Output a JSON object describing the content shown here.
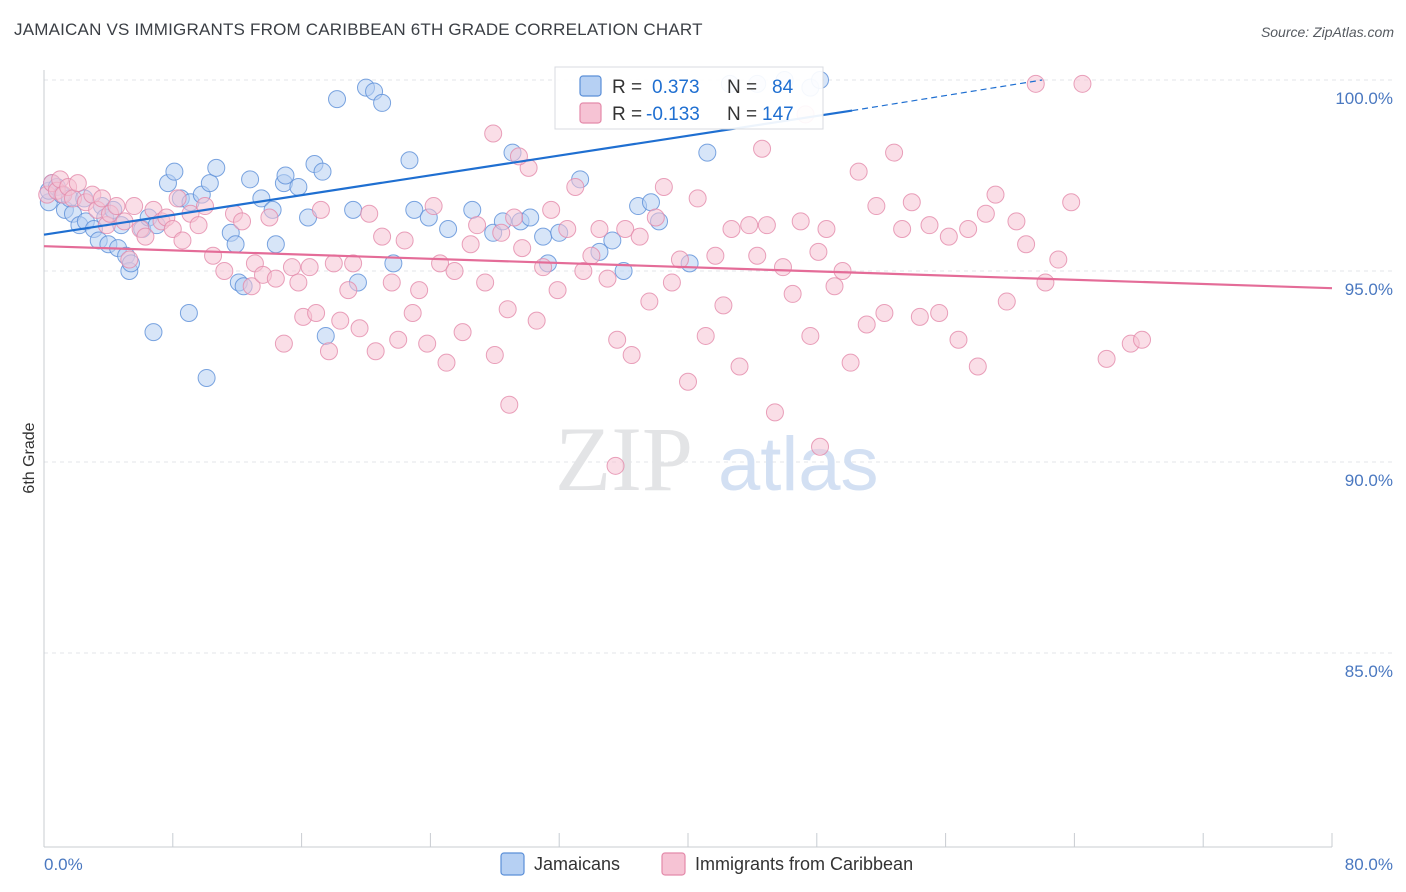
{
  "title": "JAMAICAN VS IMMIGRANTS FROM CARIBBEAN 6TH GRADE CORRELATION CHART",
  "source": "Source: ZipAtlas.com",
  "watermark": {
    "zip": "ZIP",
    "atlas": "atlas"
  },
  "chart_data": {
    "type": "scatter",
    "title": "JAMAICAN VS IMMIGRANTS FROM CARIBBEAN 6TH GRADE CORRELATION CHART",
    "ylabel": "6th Grade",
    "xlabel": "",
    "xlim": [
      0,
      80
    ],
    "ylim": [
      80.5,
      100.7
    ],
    "x_tick_labels": [
      "0.0%",
      "80.0%"
    ],
    "y_ticks": [
      85,
      90,
      95,
      100
    ],
    "y_tick_labels": [
      "85.0%",
      "90.0%",
      "95.0%",
      "100.0%"
    ],
    "grid": true,
    "legend_position": "bottom",
    "stats": [
      {
        "r_label": "R =",
        "r": "0.373",
        "n_label": "N =",
        "n": "84",
        "color": "#1f6fd1",
        "fill": "#b6d0f3"
      },
      {
        "r_label": "R =",
        "r": "-0.133",
        "n_label": "N =",
        "n": "147",
        "color": "#e46c98",
        "fill": "#f6c3d4"
      }
    ],
    "series": [
      {
        "name": "Jamaicans",
        "color": "#5b8fd8",
        "fill": "#b6d0f3",
        "line_color": "#1f6fd1",
        "trend": {
          "x0": 0,
          "y0": 95.95,
          "x1": 50.2,
          "y1": 99.2,
          "dash_to_x": 62,
          "dash_to_y": 100.0
        },
        "points": [
          [
            0.3,
            96.8
          ],
          [
            0.3,
            97.1
          ],
          [
            0.5,
            97.3
          ],
          [
            0.8,
            97.2
          ],
          [
            1.1,
            97.0
          ],
          [
            1.3,
            96.6
          ],
          [
            1.6,
            96.9
          ],
          [
            1.8,
            96.5
          ],
          [
            2.2,
            96.2
          ],
          [
            2.5,
            96.9
          ],
          [
            2.6,
            96.3
          ],
          [
            3.1,
            96.1
          ],
          [
            3.4,
            95.8
          ],
          [
            3.6,
            96.7
          ],
          [
            3.8,
            96.4
          ],
          [
            4.0,
            95.7
          ],
          [
            4.3,
            96.6
          ],
          [
            4.6,
            95.6
          ],
          [
            4.8,
            96.2
          ],
          [
            5.1,
            95.4
          ],
          [
            5.3,
            95.0
          ],
          [
            6.1,
            96.1
          ],
          [
            6.5,
            96.4
          ],
          [
            7.0,
            96.2
          ],
          [
            7.7,
            97.3
          ],
          [
            8.1,
            97.6
          ],
          [
            8.5,
            96.9
          ],
          [
            9.1,
            96.8
          ],
          [
            9.8,
            97.0
          ],
          [
            10.3,
            97.3
          ],
          [
            10.7,
            97.7
          ],
          [
            11.6,
            96.0
          ],
          [
            11.9,
            95.7
          ],
          [
            12.1,
            94.7
          ],
          [
            12.4,
            94.6
          ],
          [
            12.8,
            97.4
          ],
          [
            13.5,
            96.9
          ],
          [
            14.2,
            96.6
          ],
          [
            14.4,
            95.7
          ],
          [
            14.9,
            97.3
          ],
          [
            15.0,
            97.5
          ],
          [
            15.8,
            97.2
          ],
          [
            16.4,
            96.4
          ],
          [
            16.8,
            97.8
          ],
          [
            17.3,
            97.6
          ],
          [
            17.5,
            93.3
          ],
          [
            18.2,
            99.5
          ],
          [
            19.2,
            96.6
          ],
          [
            19.5,
            94.7
          ],
          [
            20.0,
            99.8
          ],
          [
            20.5,
            99.7
          ],
          [
            21.0,
            99.4
          ],
          [
            21.7,
            95.2
          ],
          [
            22.7,
            97.9
          ],
          [
            23.0,
            96.6
          ],
          [
            23.9,
            96.4
          ],
          [
            25.1,
            96.1
          ],
          [
            26.6,
            96.6
          ],
          [
            27.9,
            96.0
          ],
          [
            28.5,
            96.3
          ],
          [
            29.1,
            98.1
          ],
          [
            29.6,
            96.3
          ],
          [
            30.2,
            96.4
          ],
          [
            31.0,
            95.9
          ],
          [
            31.3,
            95.2
          ],
          [
            32.0,
            96.0
          ],
          [
            33.3,
            97.4
          ],
          [
            34.5,
            95.5
          ],
          [
            35.3,
            95.8
          ],
          [
            36.0,
            95.0
          ],
          [
            36.9,
            96.7
          ],
          [
            37.7,
            96.8
          ],
          [
            38.2,
            96.3
          ],
          [
            40.1,
            95.2
          ],
          [
            41.2,
            98.1
          ],
          [
            42.6,
            99.9
          ],
          [
            44.3,
            99.9
          ],
          [
            46.0,
            100.0
          ],
          [
            47.6,
            99.8
          ],
          [
            48.2,
            100.0
          ],
          [
            5.4,
            95.2
          ],
          [
            6.8,
            93.4
          ],
          [
            9.0,
            93.9
          ],
          [
            10.1,
            92.2
          ]
        ]
      },
      {
        "name": "Immigrants from Caribbean",
        "color": "#e48aaa",
        "fill": "#f6c3d4",
        "line_color": "#e46c98",
        "trend": {
          "x0": 0,
          "y0": 95.65,
          "x1": 80,
          "y1": 94.55
        },
        "points": [
          [
            0.2,
            97.0
          ],
          [
            0.5,
            97.3
          ],
          [
            0.8,
            97.1
          ],
          [
            1.0,
            97.4
          ],
          [
            1.2,
            97.0
          ],
          [
            1.5,
            97.2
          ],
          [
            1.8,
            96.9
          ],
          [
            2.1,
            97.3
          ],
          [
            2.6,
            96.8
          ],
          [
            3.0,
            97.0
          ],
          [
            3.3,
            96.6
          ],
          [
            3.6,
            96.9
          ],
          [
            3.9,
            96.2
          ],
          [
            4.1,
            96.5
          ],
          [
            4.5,
            96.7
          ],
          [
            5.0,
            96.3
          ],
          [
            5.3,
            95.3
          ],
          [
            5.6,
            96.7
          ],
          [
            6.0,
            96.1
          ],
          [
            6.3,
            95.9
          ],
          [
            6.8,
            96.6
          ],
          [
            7.3,
            96.3
          ],
          [
            7.6,
            96.4
          ],
          [
            8.0,
            96.1
          ],
          [
            8.3,
            96.9
          ],
          [
            8.6,
            95.8
          ],
          [
            9.1,
            96.5
          ],
          [
            9.6,
            96.2
          ],
          [
            10.0,
            96.7
          ],
          [
            10.5,
            95.4
          ],
          [
            11.2,
            95.0
          ],
          [
            11.8,
            96.5
          ],
          [
            12.3,
            96.3
          ],
          [
            12.9,
            94.6
          ],
          [
            13.1,
            95.2
          ],
          [
            13.6,
            94.9
          ],
          [
            14.0,
            96.4
          ],
          [
            14.4,
            94.8
          ],
          [
            14.9,
            93.1
          ],
          [
            15.4,
            95.1
          ],
          [
            15.8,
            94.7
          ],
          [
            16.1,
            93.8
          ],
          [
            16.5,
            95.1
          ],
          [
            16.9,
            93.9
          ],
          [
            17.2,
            96.6
          ],
          [
            17.7,
            92.9
          ],
          [
            18.0,
            95.2
          ],
          [
            18.4,
            93.7
          ],
          [
            18.9,
            94.5
          ],
          [
            19.2,
            95.2
          ],
          [
            19.6,
            93.5
          ],
          [
            20.2,
            96.5
          ],
          [
            20.6,
            92.9
          ],
          [
            21.0,
            95.9
          ],
          [
            21.6,
            94.7
          ],
          [
            22.0,
            93.2
          ],
          [
            22.4,
            95.8
          ],
          [
            22.9,
            93.9
          ],
          [
            23.3,
            94.5
          ],
          [
            23.8,
            93.1
          ],
          [
            24.2,
            96.7
          ],
          [
            24.6,
            95.2
          ],
          [
            25.0,
            92.6
          ],
          [
            25.5,
            95.0
          ],
          [
            26.0,
            93.4
          ],
          [
            26.5,
            95.7
          ],
          [
            26.9,
            96.2
          ],
          [
            27.4,
            94.7
          ],
          [
            28.0,
            92.8
          ],
          [
            28.4,
            96.0
          ],
          [
            28.8,
            94.0
          ],
          [
            29.2,
            96.4
          ],
          [
            29.7,
            95.6
          ],
          [
            30.1,
            97.7
          ],
          [
            30.6,
            93.7
          ],
          [
            31.0,
            95.1
          ],
          [
            31.5,
            96.6
          ],
          [
            31.9,
            94.5
          ],
          [
            32.5,
            96.1
          ],
          [
            33.0,
            97.2
          ],
          [
            33.5,
            95.0
          ],
          [
            34.0,
            95.4
          ],
          [
            34.5,
            96.1
          ],
          [
            35.0,
            94.8
          ],
          [
            35.6,
            93.2
          ],
          [
            36.1,
            96.1
          ],
          [
            36.5,
            92.8
          ],
          [
            37.0,
            95.9
          ],
          [
            37.6,
            94.2
          ],
          [
            38.0,
            96.4
          ],
          [
            38.5,
            97.2
          ],
          [
            39.0,
            94.7
          ],
          [
            39.5,
            95.3
          ],
          [
            40.0,
            92.1
          ],
          [
            40.6,
            96.9
          ],
          [
            41.1,
            93.3
          ],
          [
            41.7,
            95.4
          ],
          [
            42.2,
            94.1
          ],
          [
            42.7,
            96.1
          ],
          [
            43.2,
            92.5
          ],
          [
            43.8,
            96.2
          ],
          [
            44.3,
            95.4
          ],
          [
            44.9,
            96.2
          ],
          [
            45.4,
            91.3
          ],
          [
            45.9,
            95.1
          ],
          [
            46.5,
            94.4
          ],
          [
            47.0,
            96.3
          ],
          [
            47.6,
            93.3
          ],
          [
            48.1,
            95.5
          ],
          [
            48.6,
            96.1
          ],
          [
            49.1,
            94.6
          ],
          [
            49.6,
            95.0
          ],
          [
            50.1,
            92.6
          ],
          [
            50.6,
            97.6
          ],
          [
            51.1,
            93.6
          ],
          [
            51.7,
            96.7
          ],
          [
            52.2,
            93.9
          ],
          [
            52.8,
            98.1
          ],
          [
            53.3,
            96.1
          ],
          [
            53.9,
            96.8
          ],
          [
            54.4,
            93.8
          ],
          [
            55.0,
            96.2
          ],
          [
            55.6,
            93.9
          ],
          [
            56.2,
            95.9
          ],
          [
            56.8,
            93.2
          ],
          [
            57.4,
            96.1
          ],
          [
            58.0,
            92.5
          ],
          [
            58.5,
            96.5
          ],
          [
            59.1,
            97.0
          ],
          [
            59.8,
            94.2
          ],
          [
            60.4,
            96.3
          ],
          [
            61.0,
            95.7
          ],
          [
            61.6,
            99.9
          ],
          [
            62.2,
            94.7
          ],
          [
            63.0,
            95.3
          ],
          [
            63.8,
            96.8
          ],
          [
            64.5,
            99.9
          ],
          [
            66.0,
            92.7
          ],
          [
            67.5,
            93.1
          ],
          [
            68.2,
            93.2
          ],
          [
            27.9,
            98.6
          ],
          [
            29.5,
            98.0
          ],
          [
            44.6,
            98.2
          ],
          [
            47.3,
            99.1
          ],
          [
            35.5,
            89.9
          ],
          [
            48.2,
            90.4
          ],
          [
            28.9,
            91.5
          ]
        ]
      }
    ]
  },
  "legend": {
    "items": [
      {
        "label": "Jamaicans",
        "color": "#5b8fd8",
        "fill": "#b6d0f3"
      },
      {
        "label": "Immigrants from Caribbean",
        "color": "#e48aaa",
        "fill": "#f6c3d4"
      }
    ]
  }
}
